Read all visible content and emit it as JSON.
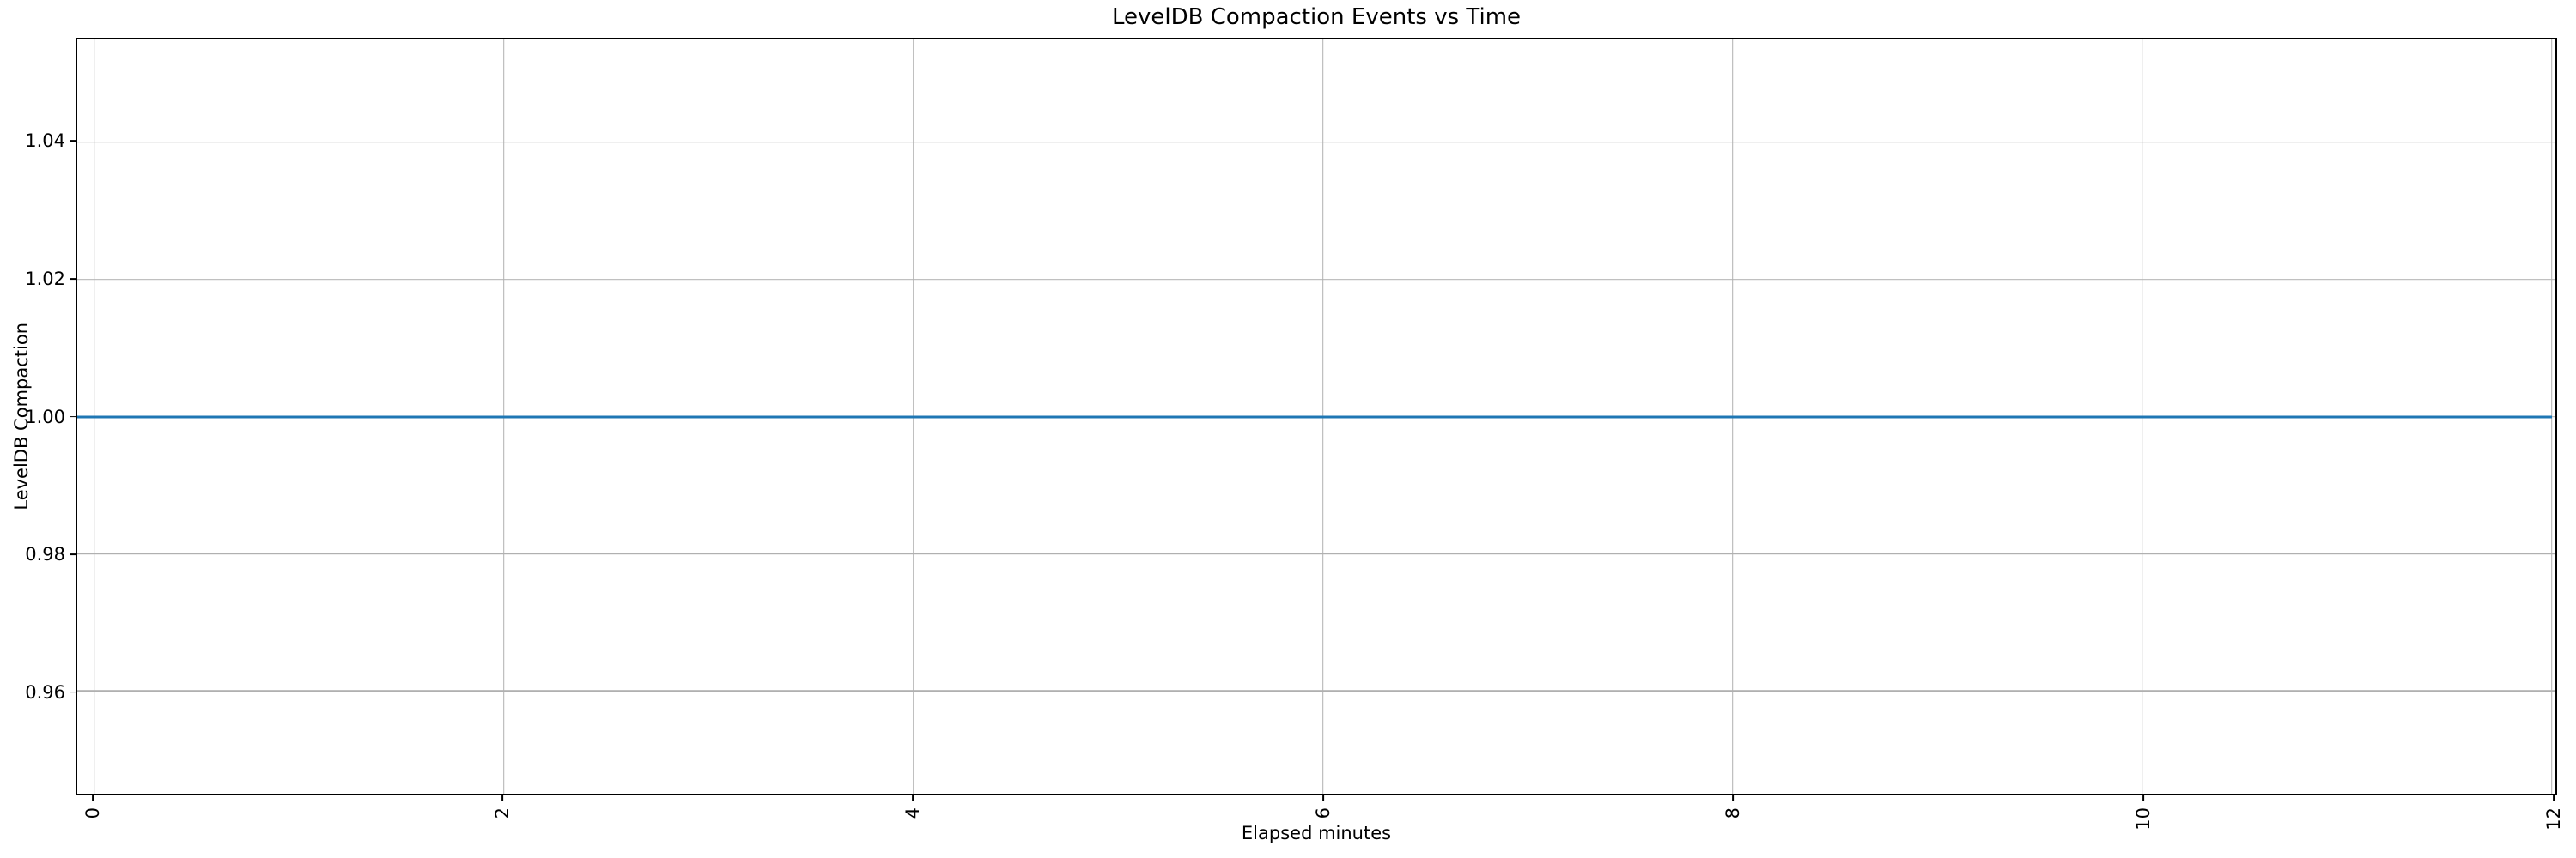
{
  "chart_data": {
    "type": "line",
    "title": "LevelDB Compaction Events vs Time",
    "xlabel": "Elapsed minutes",
    "ylabel": "LevelDB Compaction",
    "series": [
      {
        "name": "LevelDB Compaction",
        "x": [
          0,
          12
        ],
        "y": [
          1.0,
          1.0
        ],
        "color": "#1f77b4"
      }
    ],
    "xlim": [
      -0.0825,
      12.0175
    ],
    "ylim": [
      0.945,
      1.055
    ],
    "xticks": {
      "values": [
        0,
        2,
        4,
        6,
        8,
        10,
        12
      ],
      "labels": [
        "0",
        "2",
        "4",
        "6",
        "8",
        "10",
        "12"
      ],
      "rotation": 90
    },
    "yticks": {
      "values": [
        0.96,
        0.98,
        1.0,
        1.02,
        1.04
      ],
      "labels": [
        "0.96",
        "0.98",
        "1.00",
        "1.02",
        "1.04"
      ]
    },
    "grid": true,
    "grid_color": "#b0b0b0",
    "legend": false,
    "line_color": "#1f77b4"
  }
}
